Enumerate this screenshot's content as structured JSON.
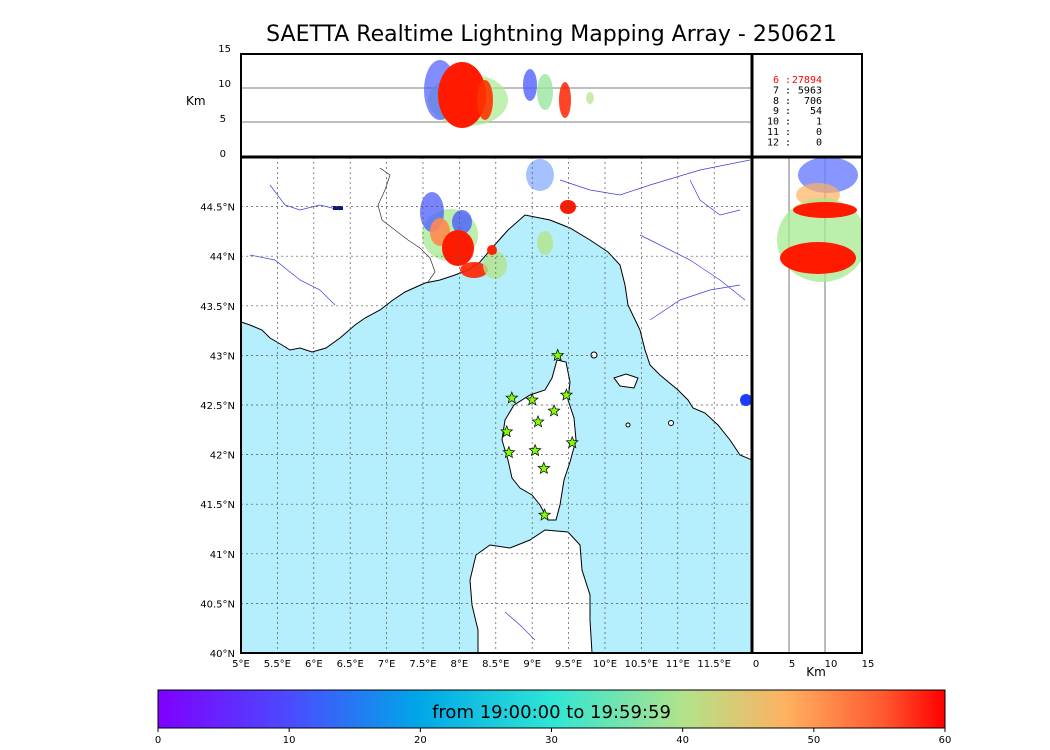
{
  "title": "SAETTA Realtime Lightning Mapping Array - 250621",
  "colors": {
    "sea": "#b5eefc",
    "land": "#ffffff",
    "coast": "#000000",
    "rivers": "#3b3bdc",
    "station": "#7fff00",
    "highlight": "#ff0000"
  },
  "top_panel": {
    "ylabel": "Km",
    "yticks": [
      "15",
      "10",
      "5",
      "0"
    ]
  },
  "side_panel": {
    "xlabel": "Km",
    "xticks": [
      "0",
      "5",
      "10",
      "15"
    ]
  },
  "lat_ticks": [
    "44.5°N",
    "44°N",
    "43.5°N",
    "43°N",
    "42.5°N",
    "42°N",
    "41.5°N",
    "41°N",
    "40.5°N",
    "40°N"
  ],
  "lon_ticks": [
    "5°E",
    "5.5°E",
    "6°E",
    "6.5°E",
    "7°E",
    "7.5°E",
    "8°E",
    "8.5°E",
    "9°E",
    "9.5°E",
    "10°E",
    "10.5°E",
    "11°E",
    "11.5°E"
  ],
  "station_counts": [
    {
      "stations": "6",
      "sources": "27894",
      "highlight": true
    },
    {
      "stations": "7",
      "sources": "5963",
      "highlight": false
    },
    {
      "stations": "8",
      "sources": "706",
      "highlight": false
    },
    {
      "stations": "9",
      "sources": "54",
      "highlight": false
    },
    {
      "stations": "10",
      "sources": "1",
      "highlight": false
    },
    {
      "stations": "11",
      "sources": "0",
      "highlight": false
    },
    {
      "stations": "12",
      "sources": "0",
      "highlight": false
    }
  ],
  "colorbar": {
    "label": "from 19:00:00 to 19:59:59",
    "ticks": [
      "0",
      "10",
      "20",
      "30",
      "40",
      "50",
      "60"
    ],
    "min": 0,
    "max": 60
  },
  "stations": [
    {
      "lon": 9.35,
      "lat": 43.0
    },
    {
      "lon": 8.72,
      "lat": 42.57
    },
    {
      "lon": 9.0,
      "lat": 42.55
    },
    {
      "lon": 9.47,
      "lat": 42.6
    },
    {
      "lon": 9.3,
      "lat": 42.44
    },
    {
      "lon": 9.08,
      "lat": 42.33
    },
    {
      "lon": 8.65,
      "lat": 42.23
    },
    {
      "lon": 9.55,
      "lat": 42.12
    },
    {
      "lon": 8.68,
      "lat": 42.02
    },
    {
      "lon": 9.04,
      "lat": 42.04
    },
    {
      "lon": 9.16,
      "lat": 41.86
    },
    {
      "lon": 9.17,
      "lat": 41.39
    }
  ]
}
